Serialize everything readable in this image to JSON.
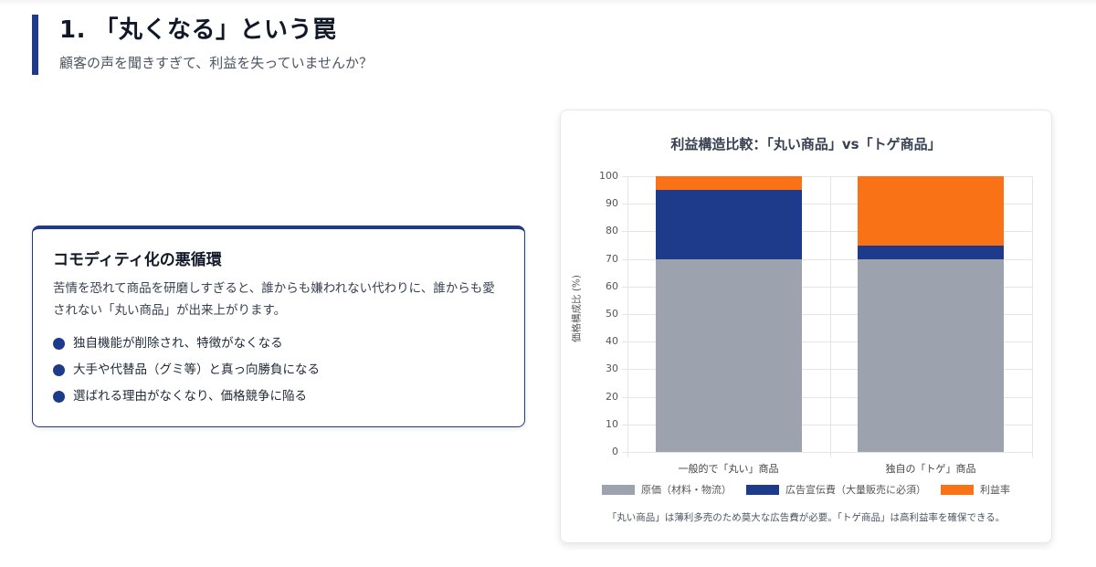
{
  "header": {
    "title": "1. 「丸くなる」という罠",
    "subtitle": "顧客の声を聞きすぎて、利益を失っていませんか？"
  },
  "info_card": {
    "title": "コモディティ化の悪循環",
    "body": "苦情を恐れて商品を研磨しすぎると、誰からも嫌われない代わりに、誰からも愛されない「丸い商品」が出来上がります。",
    "bullets": [
      "独自機能が削除され、特徴がなくなる",
      "大手や代替品（グミ等）と真っ向勝負になる",
      "選ばれる理由がなくなり、価格競争に陥る"
    ],
    "accent_color": "#1e3a8a"
  },
  "chart_card": {
    "caption": "「丸い商品」は薄利多売のため莫大な広告費が必要。「トゲ商品」は高利益率を確保できる。"
  },
  "chart_data": {
    "type": "bar",
    "stacked": true,
    "title": "利益構造比較：「丸い商品」vs「トゲ商品」",
    "xlabel": "",
    "ylabel": "価格構成比 (%)",
    "ylim": [
      0,
      100
    ],
    "yticks": [
      0,
      10,
      20,
      30,
      40,
      50,
      60,
      70,
      80,
      90,
      100
    ],
    "grid": true,
    "legend_position": "bottom",
    "categories": [
      "一般的で「丸い」商品",
      "独自の「トゲ」商品"
    ],
    "series": [
      {
        "name": "原価（材料・物流）",
        "values": [
          70,
          70
        ],
        "color": "#9ca3af"
      },
      {
        "name": "広告宣伝費（大量販売に必須）",
        "values": [
          25,
          5
        ],
        "color": "#1e3a8a"
      },
      {
        "name": "利益率",
        "values": [
          5,
          25
        ],
        "color": "#f97316"
      }
    ]
  }
}
